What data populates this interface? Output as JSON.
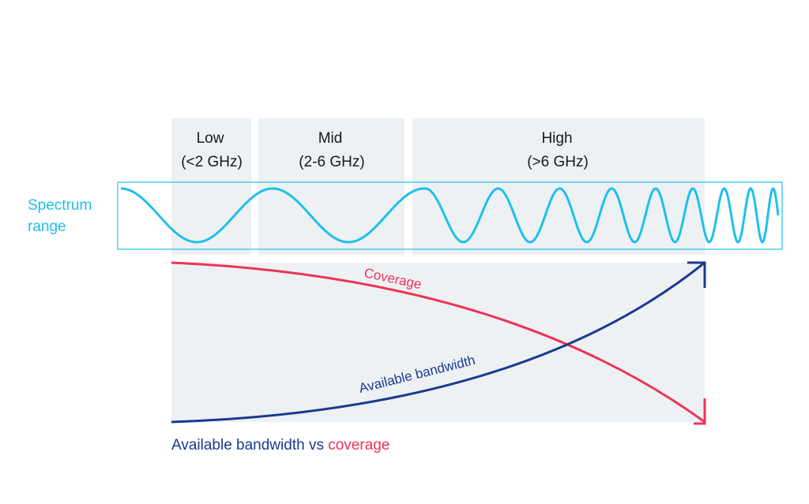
{
  "bands": [
    {
      "name": "Low",
      "range": "(<2 GHz)"
    },
    {
      "name": "Mid",
      "range": "(2-6 GHz)"
    },
    {
      "name": "High",
      "range": "(>6 GHz)"
    }
  ],
  "spectrum_label": [
    "Spectrum",
    "range"
  ],
  "curves": {
    "coverage": "Coverage",
    "bandwidth": "Available bandwidth"
  },
  "caption": {
    "bandwidth": "Available bandwidth",
    "vs": "vs",
    "coverage": "coverage"
  }
}
